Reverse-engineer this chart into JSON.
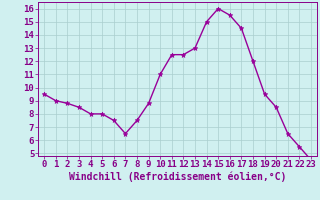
{
  "x": [
    0,
    1,
    2,
    3,
    4,
    5,
    6,
    7,
    8,
    9,
    10,
    11,
    12,
    13,
    14,
    15,
    16,
    17,
    18,
    19,
    20,
    21,
    22,
    23
  ],
  "y": [
    9.5,
    9.0,
    8.8,
    8.5,
    8.0,
    8.0,
    7.5,
    6.5,
    7.5,
    8.8,
    11.0,
    12.5,
    12.5,
    13.0,
    15.0,
    16.0,
    15.5,
    14.5,
    12.0,
    9.5,
    8.5,
    6.5,
    5.5,
    4.5
  ],
  "line_color": "#990099",
  "marker": "*",
  "bg_color": "#d0f0f0",
  "grid_color": "#aacece",
  "xlabel": "Windchill (Refroidissement éolien,°C)",
  "xlim": [
    -0.5,
    23.5
  ],
  "ylim": [
    4.8,
    16.5
  ],
  "yticks": [
    5,
    6,
    7,
    8,
    9,
    10,
    11,
    12,
    13,
    14,
    15,
    16
  ],
  "xticks": [
    0,
    1,
    2,
    3,
    4,
    5,
    6,
    7,
    8,
    9,
    10,
    11,
    12,
    13,
    14,
    15,
    16,
    17,
    18,
    19,
    20,
    21,
    22,
    23
  ],
  "xtick_labels": [
    "0",
    "1",
    "2",
    "3",
    "4",
    "5",
    "6",
    "7",
    "8",
    "9",
    "10",
    "11",
    "12",
    "13",
    "14",
    "15",
    "16",
    "17",
    "18",
    "19",
    "20",
    "21",
    "22",
    "23"
  ],
  "tick_color": "#880088",
  "label_color": "#880088",
  "tick_fontsize": 6.5,
  "xlabel_fontsize": 7.0,
  "linewidth": 1.0,
  "markersize": 3.5
}
